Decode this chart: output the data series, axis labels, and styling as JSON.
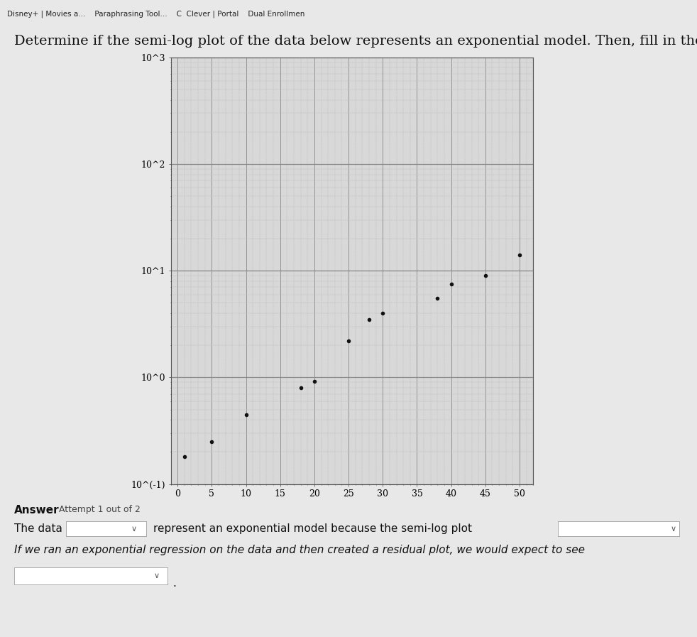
{
  "x_data": [
    1,
    5,
    10,
    18,
    20,
    25,
    28,
    30,
    38,
    40,
    45,
    50
  ],
  "y_data": [
    0.18,
    0.25,
    0.45,
    0.8,
    0.92,
    2.2,
    3.5,
    4.0,
    5.5,
    7.5,
    9.0,
    14.0
  ],
  "x_ticks": [
    0,
    5,
    10,
    15,
    20,
    25,
    30,
    35,
    40,
    45,
    50
  ],
  "y_tick_labels": [
    "10^(-1)",
    "10^0",
    "10^1",
    "10^2",
    "10^3"
  ],
  "y_tick_values": [
    0.1,
    1.0,
    10.0,
    100.0,
    1000.0
  ],
  "xlim": [
    -1,
    52
  ],
  "ylim_log": [
    0.1,
    1000.0
  ],
  "title": "Determine if the semi-log plot of the data below represents an exponential model. Then, fill in the answers below.",
  "answer_label": "Answer",
  "attempt_label": "Attempt 1 out of 2",
  "line1_pre": "The data",
  "line1_post": "represent an exponential model because the semi-log plot",
  "line2": "If we ran an exponential regression on the data and then created a residual plot, we would expect to see",
  "page_bg": "#e8e8e8",
  "plot_bg": "#d8d8d8",
  "grid_major_color": "#888888",
  "grid_minor_color": "#bbbbbb",
  "dot_color": "#111111",
  "dot_size": 18,
  "title_fontsize": 14,
  "axis_fontsize": 9,
  "answer_fontsize": 11
}
